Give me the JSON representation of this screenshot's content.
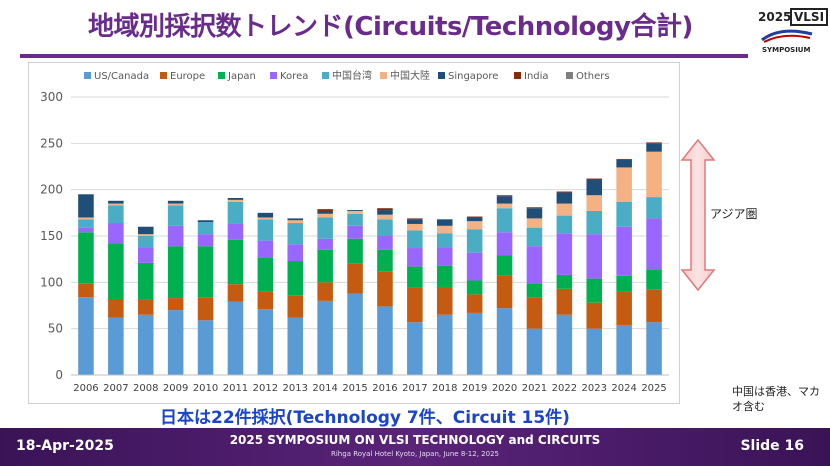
{
  "header": {
    "title": "地域別採択数トレンド(Circuits/Technology合計)",
    "logo_year": "2025",
    "logo_mark": "VLSI",
    "logo_sub": "SYMPOSIUM"
  },
  "chart_data": {
    "type": "bar",
    "stacked": true,
    "categories": [
      "2006",
      "2007",
      "2008",
      "2009",
      "2010",
      "2011",
      "2012",
      "2013",
      "2014",
      "2015",
      "2016",
      "2017",
      "2018",
      "2019",
      "2020",
      "2021",
      "2022",
      "2023",
      "2024",
      "2025"
    ],
    "ylim": [
      0,
      300
    ],
    "yticks": [
      "0",
      "50",
      "100",
      "150",
      "200",
      "250",
      "300"
    ],
    "legend_position": "top",
    "grid": true,
    "series": [
      {
        "name": "US/Canada",
        "color": "#5b9bd5",
        "values": [
          84,
          62,
          65,
          70,
          59,
          79,
          71,
          62,
          80,
          88,
          74,
          57,
          65,
          67,
          72,
          50,
          65,
          50,
          54,
          57
        ]
      },
      {
        "name": "Europe",
        "color": "#c55a11",
        "values": [
          15,
          20,
          16,
          13,
          25,
          19,
          19,
          24,
          20,
          32,
          38,
          37,
          30,
          20,
          35,
          34,
          28,
          28,
          36,
          35
        ]
      },
      {
        "name": "Japan",
        "color": "#00b050",
        "values": [
          55,
          60,
          40,
          56,
          55,
          48,
          37,
          37,
          35,
          27,
          23,
          23,
          23,
          15,
          22,
          15,
          15,
          26,
          17,
          22
        ]
      },
      {
        "name": "Korea",
        "color": "#9966ff",
        "values": [
          5,
          22,
          17,
          22,
          13,
          17,
          18,
          18,
          12,
          14,
          15,
          20,
          20,
          30,
          25,
          40,
          45,
          48,
          53,
          55
        ]
      },
      {
        "name": "中国台湾",
        "color": "#4bacc6",
        "values": [
          9,
          19,
          12,
          22,
          13,
          24,
          23,
          23,
          23,
          13,
          18,
          19,
          15,
          25,
          26,
          20,
          19,
          25,
          27,
          23
        ]
      },
      {
        "name": "中国大陸",
        "color": "#f4b183",
        "values": [
          2,
          2,
          2,
          2,
          0,
          2,
          2,
          3,
          4,
          3,
          5,
          7,
          8,
          9,
          5,
          10,
          13,
          17,
          37,
          49
        ]
      },
      {
        "name": "Singapore",
        "color": "#1f4e79",
        "values": [
          25,
          3,
          8,
          3,
          2,
          2,
          5,
          2,
          3,
          1,
          5,
          5,
          7,
          4,
          8,
          11,
          12,
          17,
          8,
          9
        ]
      },
      {
        "name": "India",
        "color": "#8b2b0d",
        "values": [
          0,
          0,
          0,
          0,
          0,
          0,
          0,
          0,
          2,
          0,
          2,
          1,
          0,
          1,
          1,
          1,
          1,
          1,
          1,
          1
        ]
      },
      {
        "name": "Others",
        "color": "#7f7f7f",
        "values": [
          0,
          0,
          0,
          0,
          0,
          0,
          0,
          0,
          0,
          0,
          0,
          0,
          0,
          0,
          0,
          0,
          0,
          0,
          0,
          0
        ]
      }
    ]
  },
  "annotation": {
    "range_label": "アジア圏"
  },
  "note": "中国は香港、マカオ含む",
  "summary": "日本は22件採択(Technology 7件、Circuit 15件)",
  "footer": {
    "date": "18-Apr-2025",
    "conference": "2025 SYMPOSIUM ON VLSI TECHNOLOGY and CIRCUITS",
    "venue": "Rihga Royal Hotel Kyoto, Japan, June 8-12, 2025",
    "slide": "Slide 16"
  }
}
